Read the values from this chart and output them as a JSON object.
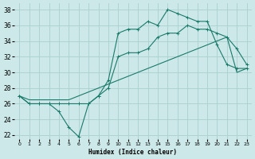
{
  "xlabel": "Humidex (Indice chaleur)",
  "xlim": [
    -0.5,
    23.5
  ],
  "ylim": [
    21.5,
    38.8
  ],
  "xticks": [
    0,
    1,
    2,
    3,
    4,
    5,
    6,
    7,
    8,
    9,
    10,
    11,
    12,
    13,
    14,
    15,
    16,
    17,
    18,
    19,
    20,
    21,
    22,
    23
  ],
  "yticks": [
    22,
    24,
    26,
    28,
    30,
    32,
    34,
    36,
    38
  ],
  "bg_color": "#cce8e8",
  "grid_color": "#aad0d0",
  "line_color": "#1a7a6a",
  "line1_x": [
    0,
    1,
    2,
    3,
    4,
    5,
    6,
    7,
    8,
    9,
    10,
    11,
    12,
    13,
    14,
    15,
    16,
    17,
    18,
    19,
    20,
    21,
    22,
    23
  ],
  "line1_y": [
    27,
    26,
    26,
    26,
    25,
    23,
    21.8,
    26,
    27,
    29,
    35,
    35.5,
    35.5,
    36.5,
    36,
    38,
    37.5,
    37,
    36.5,
    36.5,
    33.5,
    31,
    30.5,
    30.5
  ],
  "line2_x": [
    0,
    1,
    2,
    3,
    4,
    5,
    6,
    7,
    8,
    9,
    10,
    11,
    12,
    13,
    14,
    15,
    16,
    17,
    18,
    19,
    20,
    21,
    22,
    23
  ],
  "line2_y": [
    27,
    26,
    26,
    26,
    26,
    26,
    26,
    26,
    27,
    28,
    32,
    32.5,
    32.5,
    33,
    34.5,
    35,
    35,
    36,
    35.5,
    35.5,
    35,
    34.5,
    33,
    31
  ],
  "line3_x": [
    0,
    1,
    2,
    3,
    4,
    5,
    6,
    7,
    8,
    9,
    10,
    11,
    12,
    13,
    14,
    15,
    16,
    17,
    18,
    19,
    20,
    21,
    22,
    23
  ],
  "line3_y": [
    27,
    26.5,
    26.5,
    26.5,
    26.5,
    26.5,
    27,
    27.5,
    28,
    28.5,
    29,
    29.5,
    30,
    30.5,
    31,
    31.5,
    32,
    32.5,
    33,
    33.5,
    34,
    34.5,
    30,
    30.5
  ]
}
